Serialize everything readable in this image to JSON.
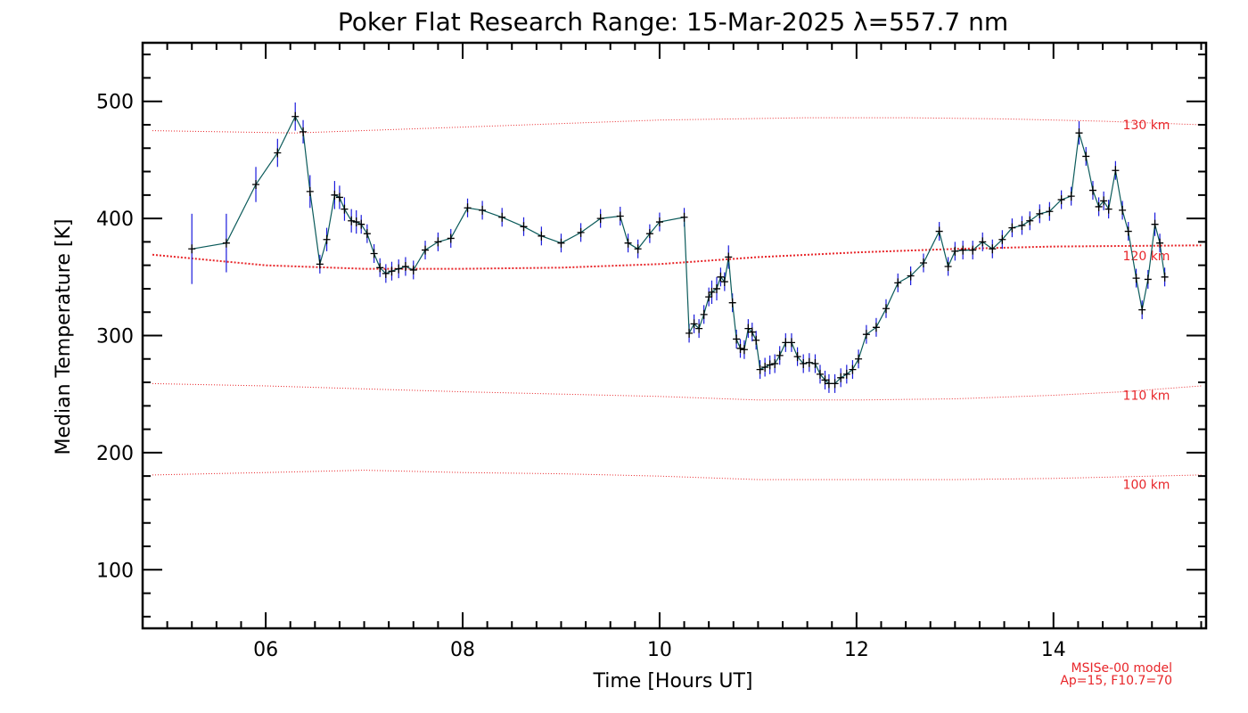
{
  "chart_data": {
    "type": "line",
    "title": "Poker Flat Research Range: 15-Mar-2025 λ=557.7 nm",
    "xlabel": "Time [Hours UT]",
    "ylabel": "Median Temperature [K]",
    "xlim": [
      4.75,
      15.55
    ],
    "ylim": [
      50,
      550
    ],
    "x_ticks": [
      6,
      8,
      10,
      12,
      14
    ],
    "x_tick_labels": [
      "06",
      "08",
      "10",
      "12",
      "14"
    ],
    "y_ticks": [
      100,
      200,
      300,
      400,
      500
    ],
    "y_tick_labels": [
      "100",
      "200",
      "300",
      "400",
      "500"
    ],
    "grid": false,
    "colors": {
      "line": "#0a5a5a",
      "errorbar": "#1a1adc",
      "model": "#e8262a",
      "marker": "#000000"
    },
    "series": [
      {
        "points": [
          [
            5.25,
            374,
            30
          ],
          [
            5.6,
            379,
            25
          ],
          [
            5.9,
            429,
            15
          ],
          [
            6.12,
            456,
            12
          ],
          [
            6.3,
            487,
            12
          ],
          [
            6.38,
            474,
            10
          ],
          [
            6.45,
            423,
            14
          ],
          [
            6.55,
            361,
            8
          ],
          [
            6.62,
            382,
            10
          ],
          [
            6.7,
            420,
            12
          ],
          [
            6.75,
            418,
            10
          ],
          [
            6.8,
            408,
            10
          ],
          [
            6.87,
            398,
            10
          ],
          [
            6.92,
            397,
            10
          ],
          [
            6.97,
            395,
            8
          ],
          [
            7.03,
            387,
            8
          ],
          [
            7.1,
            370,
            8
          ],
          [
            7.16,
            358,
            8
          ],
          [
            7.22,
            353,
            8
          ],
          [
            7.28,
            355,
            8
          ],
          [
            7.35,
            357,
            8
          ],
          [
            7.42,
            359,
            8
          ],
          [
            7.5,
            356,
            8
          ],
          [
            7.62,
            373,
            8
          ],
          [
            7.75,
            380,
            8
          ],
          [
            7.88,
            383,
            8
          ],
          [
            8.05,
            409,
            8
          ],
          [
            8.2,
            407,
            8
          ],
          [
            8.4,
            401,
            8
          ],
          [
            8.62,
            393,
            8
          ],
          [
            8.8,
            385,
            8
          ],
          [
            9.0,
            379,
            8
          ],
          [
            9.2,
            388,
            8
          ],
          [
            9.4,
            400,
            8
          ],
          [
            9.6,
            402,
            8
          ],
          [
            9.68,
            379,
            8
          ],
          [
            9.78,
            374,
            8
          ],
          [
            9.9,
            387,
            8
          ],
          [
            10.0,
            397,
            8
          ],
          [
            10.25,
            401,
            8
          ],
          [
            10.3,
            302,
            8
          ],
          [
            10.35,
            310,
            8
          ],
          [
            10.4,
            306,
            8
          ],
          [
            10.45,
            318,
            8
          ],
          [
            10.5,
            333,
            8
          ],
          [
            10.53,
            337,
            10
          ],
          [
            10.58,
            340,
            10
          ],
          [
            10.62,
            350,
            8
          ],
          [
            10.66,
            346,
            8
          ],
          [
            10.7,
            367,
            10
          ],
          [
            10.74,
            328,
            8
          ],
          [
            10.78,
            297,
            8
          ],
          [
            10.82,
            289,
            8
          ],
          [
            10.86,
            288,
            8
          ],
          [
            10.9,
            306,
            8
          ],
          [
            10.94,
            303,
            8
          ],
          [
            10.98,
            296,
            8
          ],
          [
            11.02,
            271,
            8
          ],
          [
            11.07,
            273,
            8
          ],
          [
            11.12,
            275,
            8
          ],
          [
            11.17,
            276,
            8
          ],
          [
            11.22,
            283,
            8
          ],
          [
            11.28,
            294,
            8
          ],
          [
            11.34,
            294,
            8
          ],
          [
            11.4,
            282,
            8
          ],
          [
            11.46,
            276,
            8
          ],
          [
            11.52,
            277,
            8
          ],
          [
            11.58,
            276,
            8
          ],
          [
            11.63,
            267,
            8
          ],
          [
            11.68,
            262,
            8
          ],
          [
            11.72,
            259,
            8
          ],
          [
            11.78,
            259,
            8
          ],
          [
            11.84,
            264,
            8
          ],
          [
            11.9,
            267,
            8
          ],
          [
            11.96,
            271,
            8
          ],
          [
            12.02,
            280,
            8
          ],
          [
            12.1,
            301,
            8
          ],
          [
            12.2,
            307,
            8
          ],
          [
            12.3,
            323,
            8
          ],
          [
            12.42,
            345,
            8
          ],
          [
            12.55,
            351,
            8
          ],
          [
            12.68,
            362,
            8
          ],
          [
            12.84,
            389,
            8
          ],
          [
            12.93,
            359,
            8
          ],
          [
            13.0,
            372,
            8
          ],
          [
            13.08,
            373,
            8
          ],
          [
            13.18,
            373,
            8
          ],
          [
            13.28,
            380,
            8
          ],
          [
            13.38,
            374,
            8
          ],
          [
            13.48,
            382,
            8
          ],
          [
            13.58,
            392,
            8
          ],
          [
            13.68,
            394,
            8
          ],
          [
            13.76,
            398,
            8
          ],
          [
            13.86,
            404,
            8
          ],
          [
            13.96,
            406,
            8
          ],
          [
            14.08,
            416,
            8
          ],
          [
            14.18,
            419,
            8
          ],
          [
            14.26,
            473,
            10
          ],
          [
            14.33,
            453,
            8
          ],
          [
            14.4,
            424,
            8
          ],
          [
            14.46,
            410,
            8
          ],
          [
            14.51,
            415,
            8
          ],
          [
            14.56,
            408,
            8
          ],
          [
            14.63,
            441,
            8
          ],
          [
            14.7,
            407,
            8
          ],
          [
            14.76,
            389,
            8
          ],
          [
            14.84,
            349,
            8
          ],
          [
            14.9,
            322,
            8
          ],
          [
            14.96,
            348,
            8
          ],
          [
            15.03,
            395,
            10
          ],
          [
            15.08,
            379,
            8
          ],
          [
            15.13,
            350,
            8
          ]
        ]
      }
    ],
    "model_curves": [
      {
        "label": "130 km",
        "points": [
          [
            4.85,
            475
          ],
          [
            6.3,
            473
          ],
          [
            8,
            478
          ],
          [
            10,
            484
          ],
          [
            11.5,
            486
          ],
          [
            12.5,
            486
          ],
          [
            13.5,
            485
          ],
          [
            14.5,
            483
          ],
          [
            15.5,
            480
          ]
        ]
      },
      {
        "label": "120 km",
        "points": [
          [
            4.85,
            369
          ],
          [
            6,
            360
          ],
          [
            7,
            357
          ],
          [
            8,
            357
          ],
          [
            9,
            358
          ],
          [
            10,
            361
          ],
          [
            11,
            367
          ],
          [
            12,
            371
          ],
          [
            13,
            374
          ],
          [
            14,
            376
          ],
          [
            15.5,
            377
          ]
        ]
      },
      {
        "label": "110 km",
        "points": [
          [
            4.85,
            259
          ],
          [
            6,
            257
          ],
          [
            8,
            252
          ],
          [
            9,
            250
          ],
          [
            10,
            248
          ],
          [
            11,
            245
          ],
          [
            12,
            245
          ],
          [
            13,
            246
          ],
          [
            14,
            249
          ],
          [
            14.7,
            252
          ],
          [
            15.5,
            257
          ]
        ]
      },
      {
        "label": "100 km",
        "points": [
          [
            4.85,
            181
          ],
          [
            6,
            183
          ],
          [
            7,
            185
          ],
          [
            8,
            183
          ],
          [
            9,
            182
          ],
          [
            10,
            180
          ],
          [
            11,
            177
          ],
          [
            12,
            177
          ],
          [
            13,
            177
          ],
          [
            14,
            178
          ],
          [
            15.5,
            181
          ]
        ]
      }
    ],
    "model_label_values": [
      480,
      368,
      249,
      173
    ],
    "model_note_lines": [
      "MSISe-00 model",
      "Ap=15, F10.7=70"
    ]
  }
}
